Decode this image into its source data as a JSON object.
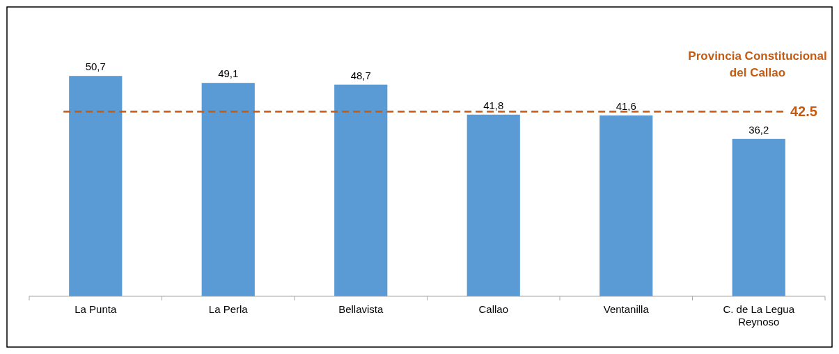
{
  "chart_data": {
    "type": "bar",
    "categories": [
      "La Punta",
      "La Perla",
      "Bellavista",
      "Callao",
      "Ventanilla",
      "C. de La Legua Reynoso"
    ],
    "values": [
      50.7,
      49.1,
      48.7,
      41.8,
      41.6,
      36.2
    ],
    "value_labels": [
      "50,7",
      "49,1",
      "48,7",
      "41,8",
      "41,6",
      "36,2"
    ],
    "color": "#5b9bd5",
    "ref_lines": [
      {
        "axis": "y",
        "value": 42.5,
        "label": "42.5",
        "color": "#c55a11",
        "line_style": "dashed"
      }
    ],
    "annotations": [
      "Provincia Constitucional del Callao"
    ]
  }
}
